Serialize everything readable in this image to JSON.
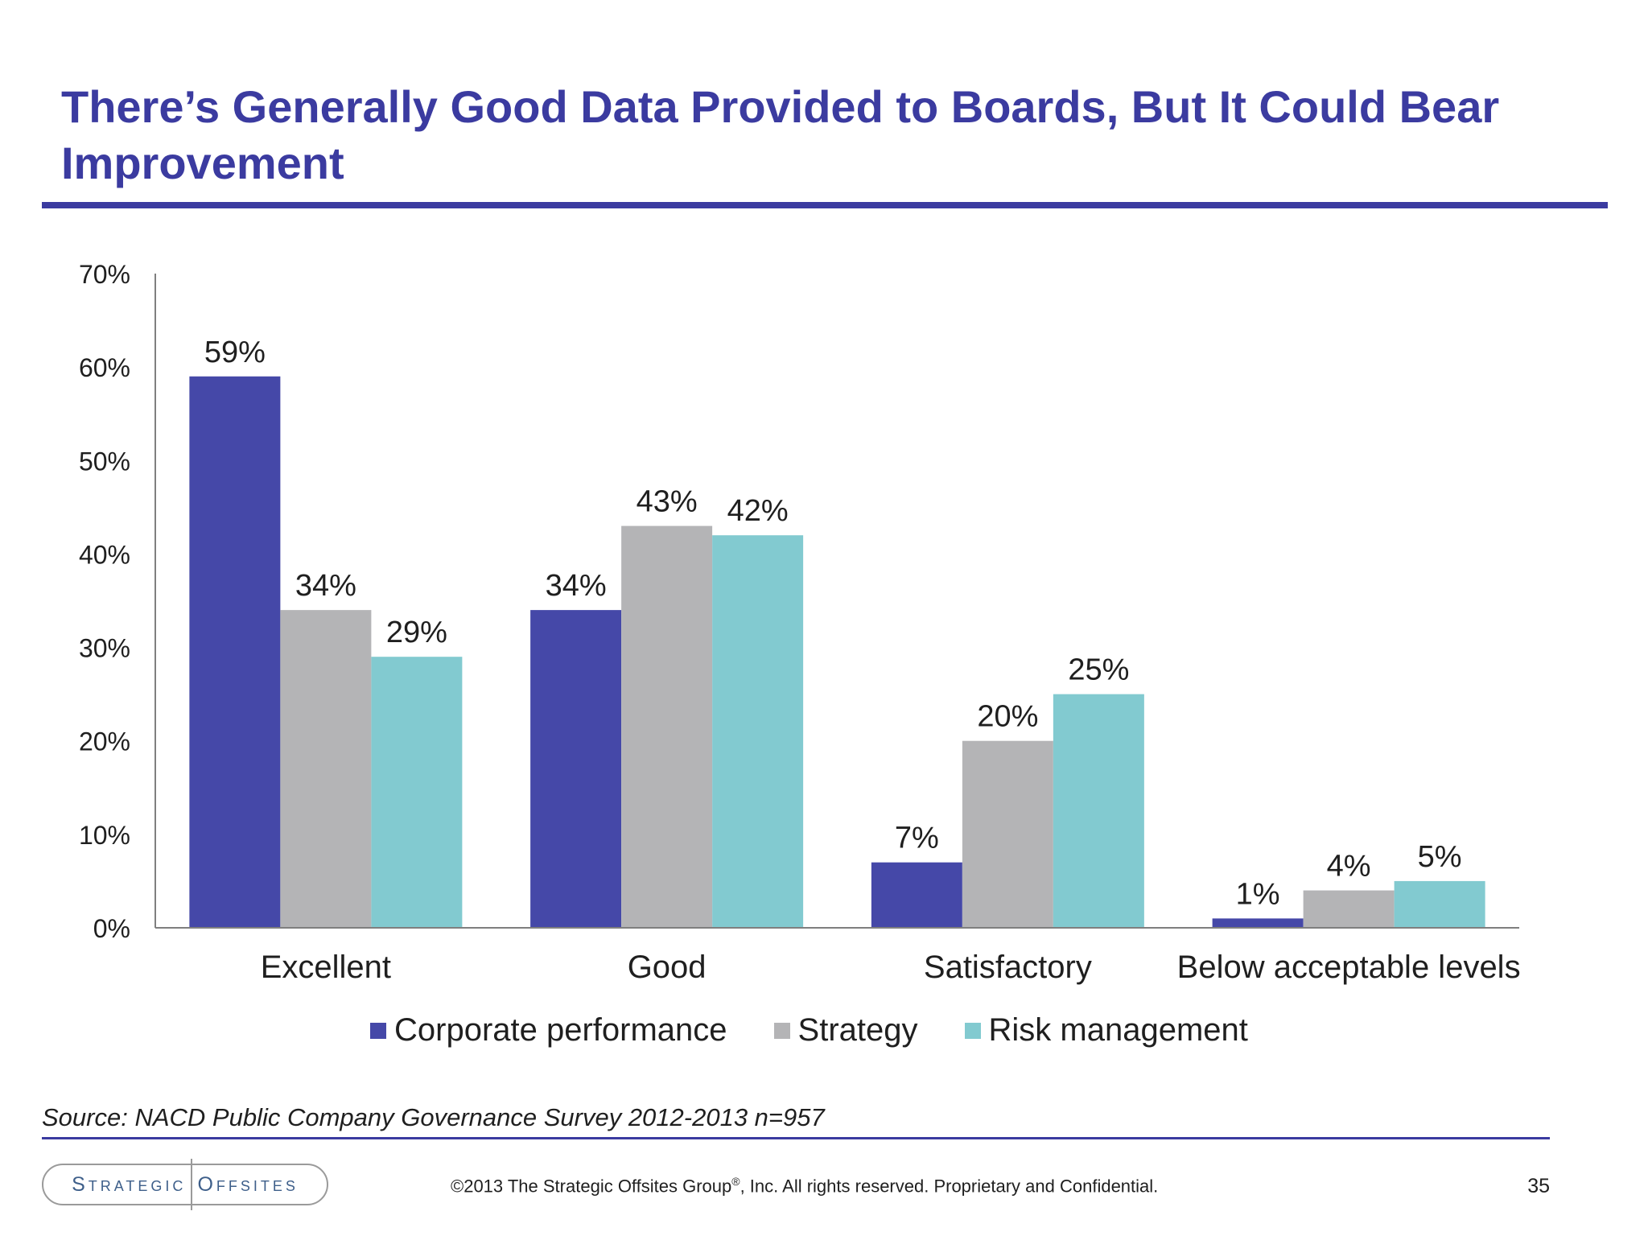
{
  "slide": {
    "title": "There’s Generally Good Data Provided to Boards, But It Could Bear Improvement",
    "source": "Source: NACD Public Company Governance Survey 2012-2013  n=957",
    "logo_left": "Strategic",
    "logo_right": "Offsites",
    "copyright_pre": "©2013 The Strategic Offsites Group",
    "copyright_reg": "®",
    "copyright_post": ", Inc.  All rights reserved. Proprietary and Confidential.",
    "page_number": "35"
  },
  "chart_data": {
    "type": "bar",
    "categories": [
      "Excellent",
      "Good",
      "Satisfactory",
      "Below acceptable levels"
    ],
    "series": [
      {
        "name": "Corporate performance",
        "color": "#4548a8",
        "values": [
          59,
          34,
          7,
          1
        ],
        "labels": [
          "59%",
          "34%",
          "7%",
          "1%"
        ]
      },
      {
        "name": "Strategy",
        "color": "#b4b4b6",
        "values": [
          34,
          43,
          20,
          4
        ],
        "labels": [
          "34%",
          "43%",
          "20%",
          "4%"
        ]
      },
      {
        "name": "Risk management",
        "color": "#82cad0",
        "values": [
          29,
          42,
          25,
          5
        ],
        "labels": [
          "29%",
          "42%",
          "25%",
          "5%"
        ]
      }
    ],
    "ylim": [
      0,
      70
    ],
    "yticks": [
      0,
      10,
      20,
      30,
      40,
      50,
      60,
      70
    ],
    "ytick_labels": [
      "0%",
      "10%",
      "20%",
      "30%",
      "40%",
      "50%",
      "60%",
      "70%"
    ],
    "grid": false,
    "legend_position": "bottom"
  }
}
